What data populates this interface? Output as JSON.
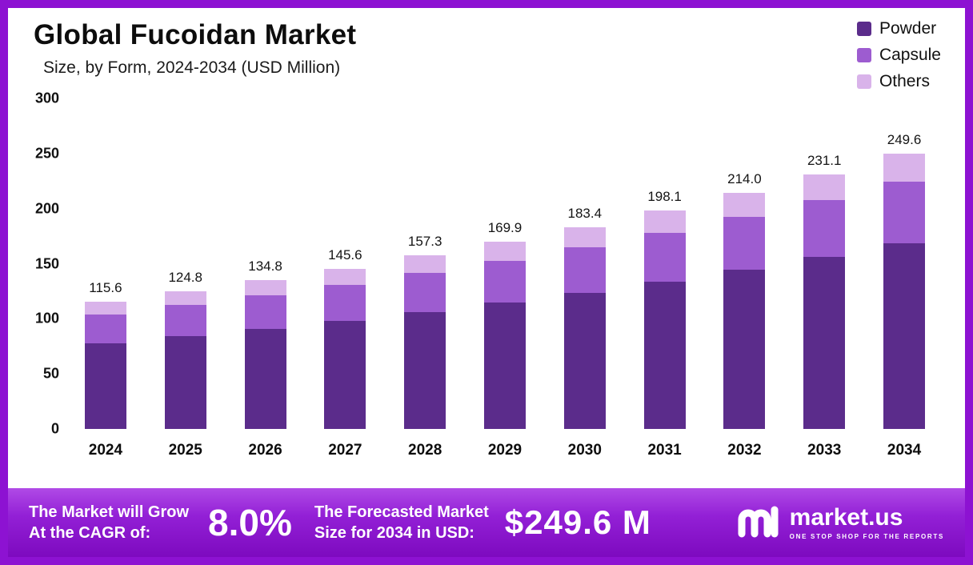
{
  "header": {
    "title": "Global Fucoidan Market",
    "subtitle": "Size, by Form, 2024-2034 (USD Million)"
  },
  "legend": [
    {
      "label": "Powder",
      "color": "#5b2c8b"
    },
    {
      "label": "Capsule",
      "color": "#9d5cd0"
    },
    {
      "label": "Others",
      "color": "#d9b3ea"
    }
  ],
  "chart_data": {
    "type": "bar",
    "stacked": true,
    "title": "Global Fucoidan Market Size, by Form, 2024-2034 (USD Million)",
    "categories": [
      "2024",
      "2025",
      "2026",
      "2027",
      "2028",
      "2029",
      "2030",
      "2031",
      "2032",
      "2033",
      "2034"
    ],
    "series": [
      {
        "name": "Powder",
        "color": "#5b2c8b",
        "values": [
          78.0,
          84.2,
          91.0,
          98.3,
          106.2,
          114.7,
          123.8,
          133.7,
          144.5,
          156.0,
          168.5
        ]
      },
      {
        "name": "Capsule",
        "color": "#9d5cd0",
        "values": [
          26.0,
          28.1,
          30.3,
          32.8,
          35.4,
          38.2,
          41.3,
          44.6,
          48.2,
          52.0,
          56.2
        ]
      },
      {
        "name": "Others",
        "color": "#d9b3ea",
        "values": [
          11.6,
          12.5,
          13.5,
          14.5,
          15.7,
          17.0,
          18.3,
          19.8,
          21.3,
          23.1,
          24.9
        ]
      }
    ],
    "totals": [
      "115.6",
      "124.8",
      "134.8",
      "145.6",
      "157.3",
      "169.9",
      "183.4",
      "198.1",
      "214.0",
      "231.1",
      "249.6"
    ],
    "xlabel": "",
    "ylabel": "",
    "ylim": [
      0,
      300
    ],
    "yticks": [
      0,
      50,
      100,
      150,
      200,
      250,
      300
    ],
    "grid": false,
    "legend_position": "top-right"
  },
  "banner": {
    "cagr_label_line1": "The Market will Grow",
    "cagr_label_line2": "At the CAGR of:",
    "cagr_value": "8.0%",
    "forecast_label_line1": "The Forecasted Market",
    "forecast_label_line2": "Size for 2034 in USD:",
    "forecast_value": "$249.6 M",
    "brand": "market.us",
    "brand_tagline": "ONE STOP SHOP FOR THE REPORTS"
  },
  "colors": {
    "frame_border": "#8d12d2",
    "banner_gradient_top": "#b04ae6",
    "banner_gradient_bottom": "#7d0abf"
  }
}
